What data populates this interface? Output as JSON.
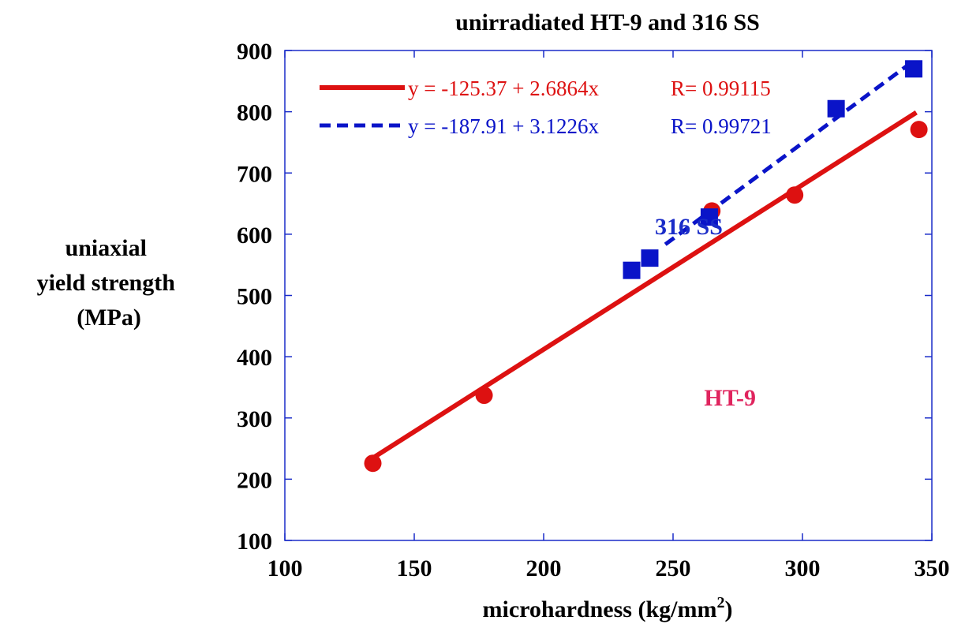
{
  "chart_data": {
    "type": "scatter",
    "title": "unirradiated HT-9 and 316 SS",
    "xlabel": "microhardness (kg/mm",
    "xlabel_superscript": "2",
    "xlabel_suffix": ")",
    "ylabel_lines": [
      "uniaxial",
      "yield strength",
      "(MPa)"
    ],
    "xlim": [
      100,
      350
    ],
    "ylim": [
      100,
      900
    ],
    "x_ticks": [
      100,
      150,
      200,
      250,
      300,
      350
    ],
    "y_ticks": [
      100,
      200,
      300,
      400,
      500,
      600,
      700,
      800,
      900
    ],
    "grid": false,
    "legend_position": "top-left",
    "series": [
      {
        "name": "HT-9",
        "color": "#dd1111",
        "label_color": "#e0245e",
        "marker": "circle",
        "points": [
          [
            134,
            226
          ],
          [
            177,
            337
          ],
          [
            265,
            638
          ],
          [
            297,
            664
          ],
          [
            345,
            771
          ]
        ],
        "fit": {
          "intercept": -125.37,
          "slope": 2.6864,
          "x_range": [
            134,
            344
          ],
          "style": "solid",
          "equation": "y = -125.37 + 2.6864x",
          "r_text": "R= 0.99115"
        }
      },
      {
        "name": "316 SS",
        "color": "#0a14c8",
        "label_color": "#0a14c8",
        "marker": "square",
        "points": [
          [
            234,
            541
          ],
          [
            241,
            561
          ],
          [
            264,
            628
          ],
          [
            313,
            805
          ],
          [
            343,
            870
          ]
        ],
        "fit": {
          "intercept": -187.91,
          "slope": 3.1226,
          "x_range": [
            247,
            343
          ],
          "style": "dashed",
          "equation": "y = -187.91 + 3.1226x",
          "r_text": "R= 0.99721"
        }
      }
    ],
    "annotations": [
      {
        "text": "316 SS",
        "x": 243,
        "y": 600,
        "color": "#1a2cc8"
      },
      {
        "text": "HT-9",
        "x": 262,
        "y": 320,
        "color": "#e0245e"
      }
    ]
  }
}
